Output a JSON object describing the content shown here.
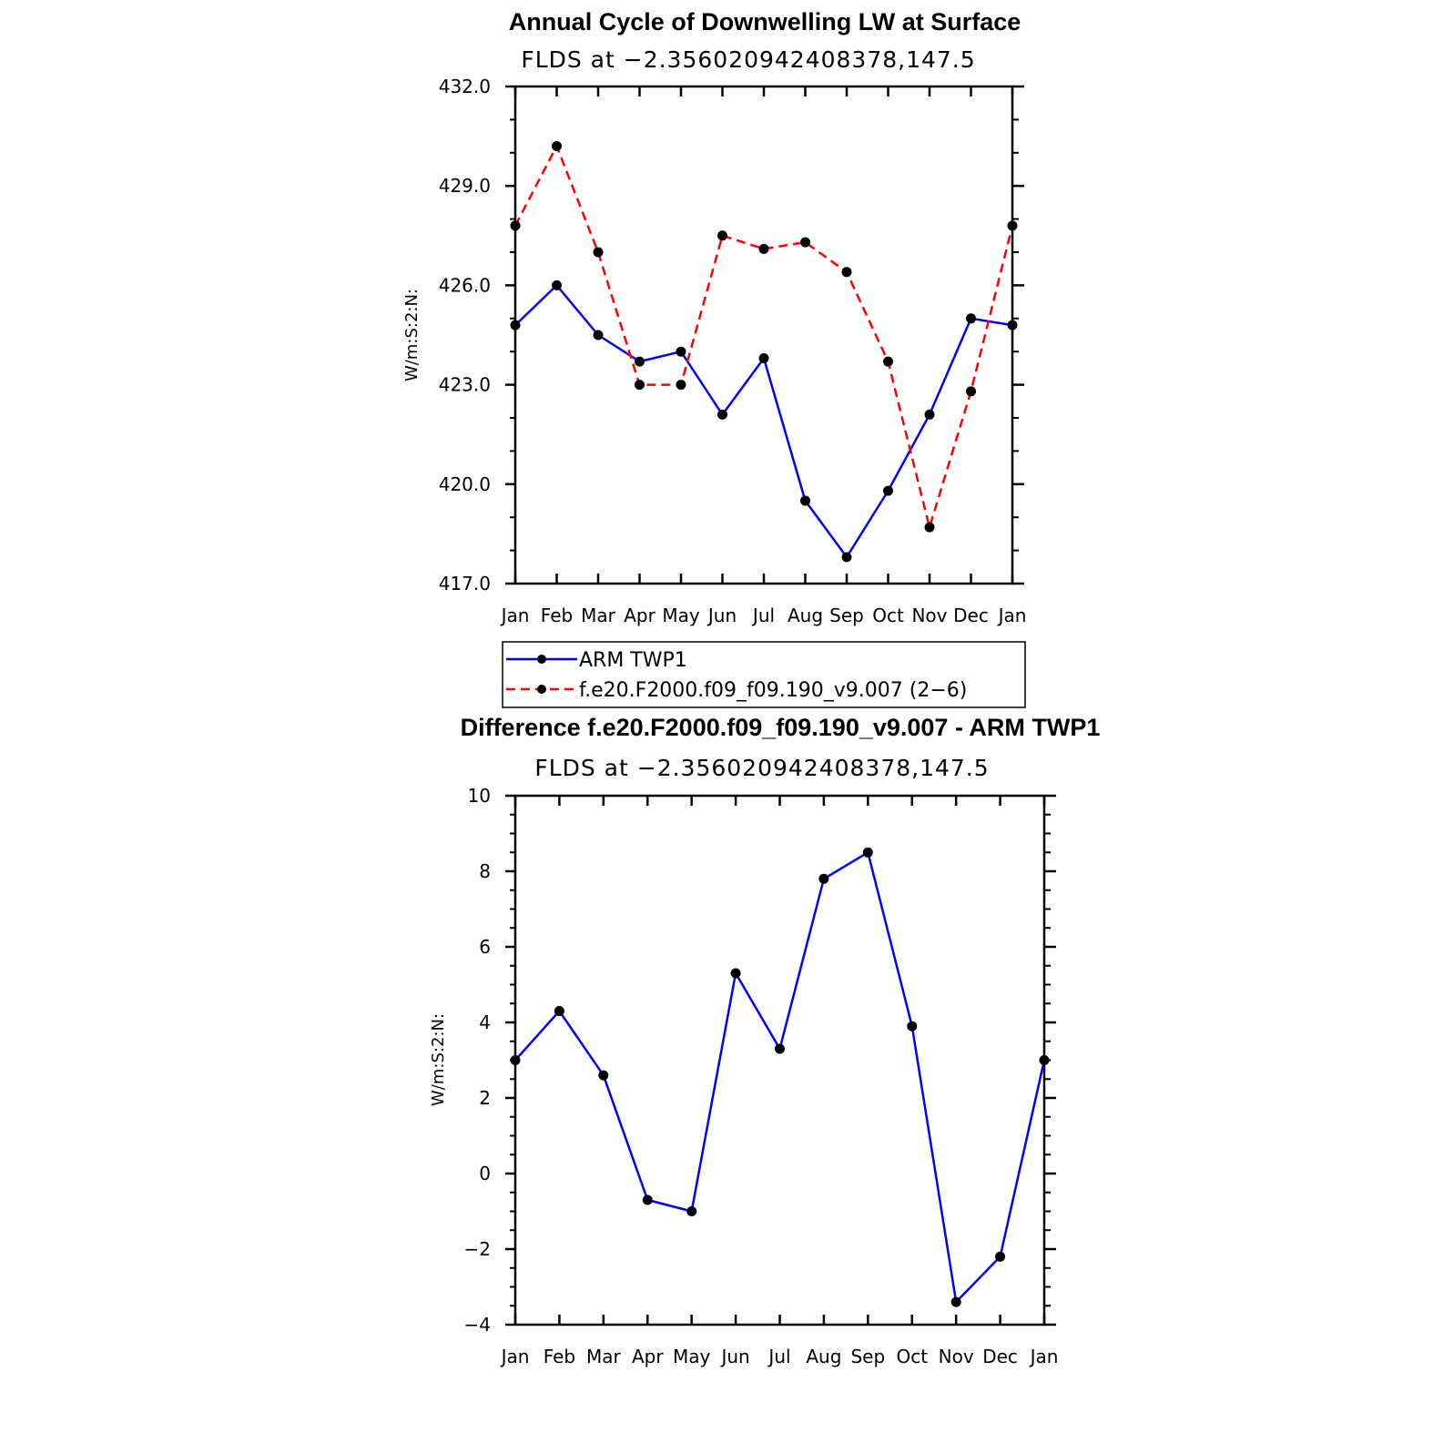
{
  "chart_data": [
    {
      "type": "line",
      "title": "Annual Cycle of Downwelling LW at Surface",
      "subtitle": "FLDS at −2.356020942408378,147.5",
      "ylabel": "W/m:S:2:N:",
      "xlabel": "",
      "categories": [
        "Jan",
        "Feb",
        "Mar",
        "Apr",
        "May",
        "Jun",
        "Jul",
        "Aug",
        "Sep",
        "Oct",
        "Nov",
        "Dec",
        "Jan"
      ],
      "ylim": [
        417.0,
        432.0
      ],
      "yticks": [
        "417.0",
        "420.0",
        "423.0",
        "426.0",
        "429.0",
        "432.0"
      ],
      "series": [
        {
          "name": "ARM TWP1",
          "color": "#0000ff",
          "dash": false,
          "values": [
            424.8,
            426.0,
            424.5,
            423.7,
            424.0,
            422.1,
            423.8,
            419.5,
            417.8,
            419.8,
            422.1,
            425.0,
            424.8
          ]
        },
        {
          "name": "f.e20.F2000.f09_f09.190_v9.007 (2−6)",
          "color": "#ff0000",
          "dash": true,
          "values": [
            427.8,
            430.2,
            427.0,
            423.0,
            423.0,
            427.5,
            427.1,
            427.3,
            426.4,
            423.7,
            418.7,
            422.8,
            427.8
          ]
        }
      ],
      "legend": "bottom"
    },
    {
      "type": "line",
      "title": "Difference f.e20.F2000.f09_f09.190_v9.007 - ARM TWP1",
      "subtitle": "FLDS at −2.356020942408378,147.5",
      "ylabel": "W/m:S:2:N:",
      "xlabel": "",
      "categories": [
        "Jan",
        "Feb",
        "Mar",
        "Apr",
        "May",
        "Jun",
        "Jul",
        "Aug",
        "Sep",
        "Oct",
        "Nov",
        "Dec",
        "Jan"
      ],
      "ylim": [
        -4,
        10
      ],
      "yticks": [
        "−4",
        "−2",
        "0",
        "2",
        "4",
        "6",
        "8",
        "10"
      ],
      "series": [
        {
          "color": "#0000ff",
          "dash": false,
          "values": [
            3.0,
            4.3,
            2.6,
            -0.7,
            -1.0,
            5.3,
            3.3,
            7.8,
            8.5,
            3.9,
            -3.4,
            -2.2,
            3.0
          ]
        }
      ]
    }
  ]
}
